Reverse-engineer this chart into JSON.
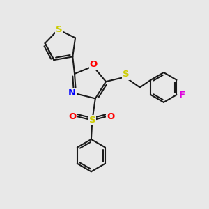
{
  "bg_color": "#e8e8e8",
  "bond_color": "#1a1a1a",
  "bond_width": 1.5,
  "atom_colors": {
    "S": "#cccc00",
    "O": "#ff0000",
    "N": "#0000ff",
    "F": "#dd00dd",
    "C": "#1a1a1a"
  },
  "font_size": 8.5,
  "fig_size": [
    3.0,
    3.0
  ],
  "dpi": 100,
  "xlim": [
    0,
    10
  ],
  "ylim": [
    0,
    10
  ]
}
